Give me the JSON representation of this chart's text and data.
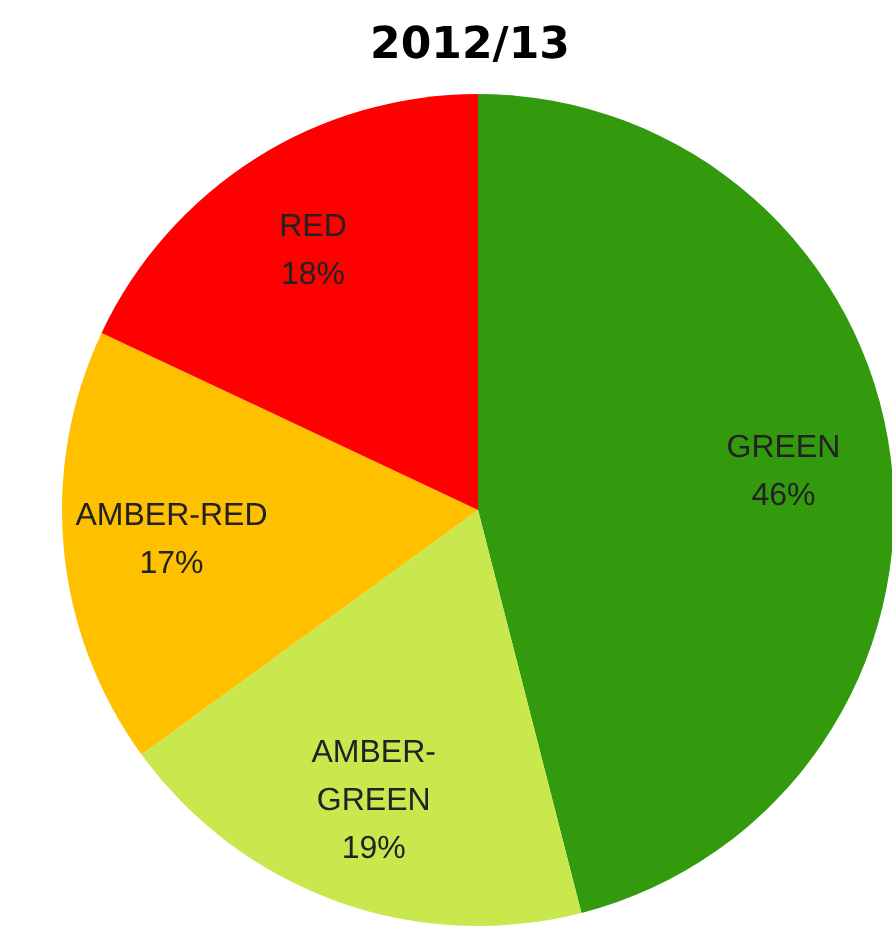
{
  "chart_data": {
    "type": "pie",
    "title": "2012/13",
    "categories": [
      "GREEN",
      "AMBER-GREEN",
      "AMBER-RED",
      "RED"
    ],
    "values": [
      46,
      19,
      17,
      18
    ],
    "value_labels": [
      "46%",
      "19%",
      "17%",
      "18%"
    ],
    "colors": [
      "#339a0e",
      "#c8e84e",
      "#ffc000",
      "#ff0000"
    ],
    "data_labels": true,
    "legend": false
  }
}
